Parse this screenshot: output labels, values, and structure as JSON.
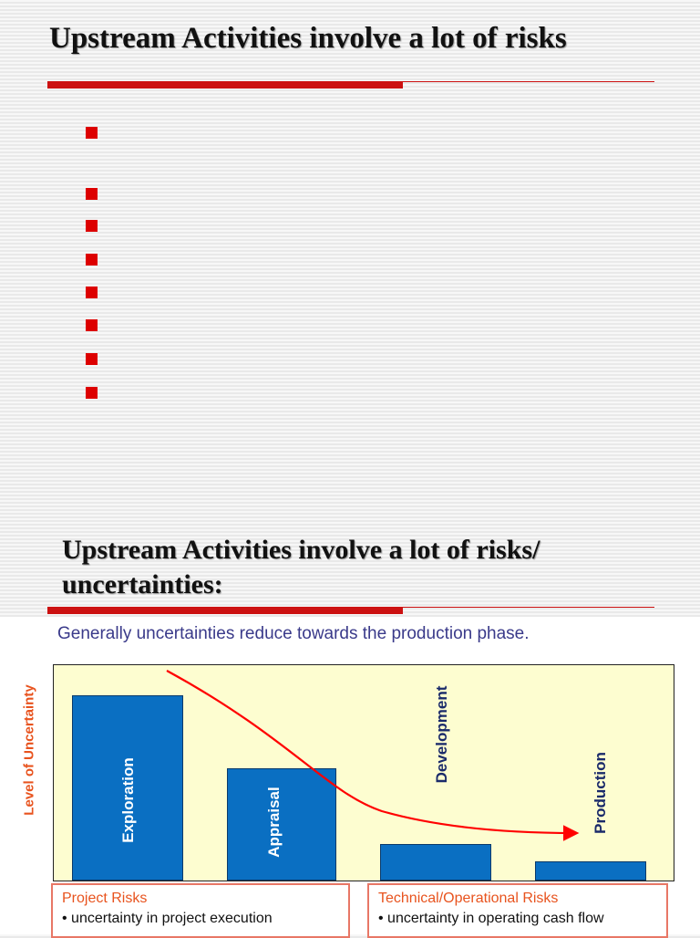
{
  "slide1": {
    "title": "Upstream Activities involve a lot of risks",
    "bullet_count": 8
  },
  "slide2": {
    "title_line1": "Upstream Activities involve a lot of risks/",
    "title_line2": "uncertainties:"
  },
  "chart": {
    "heading": "Generally uncertainties reduce towards the production phase.",
    "ylabel": "Level of Uncertainty",
    "project_risks": {
      "title": "Project Risks",
      "item": "• uncertainty in project execution"
    },
    "technical_risks": {
      "title": "Technical/Operational Risks",
      "item": "• uncertainty in operating cash flow"
    },
    "colors": {
      "bar": "#0a6fc2",
      "curve": "#ff0000",
      "plot_bg": "#fdfdd0",
      "accent": "#cc1111"
    }
  },
  "chart_data": {
    "type": "bar",
    "title": "Generally uncertainties reduce towards the production phase.",
    "xlabel": "",
    "ylabel": "Level of Uncertainty",
    "categories": [
      "Exploration",
      "Appraisal",
      "Development",
      "Production"
    ],
    "values": [
      0.86,
      0.52,
      0.17,
      0.09
    ],
    "ylim": [
      0,
      1
    ],
    "grid": false,
    "annotations": [
      "Red curved arrow trending downward from Exploration toward Production"
    ]
  }
}
